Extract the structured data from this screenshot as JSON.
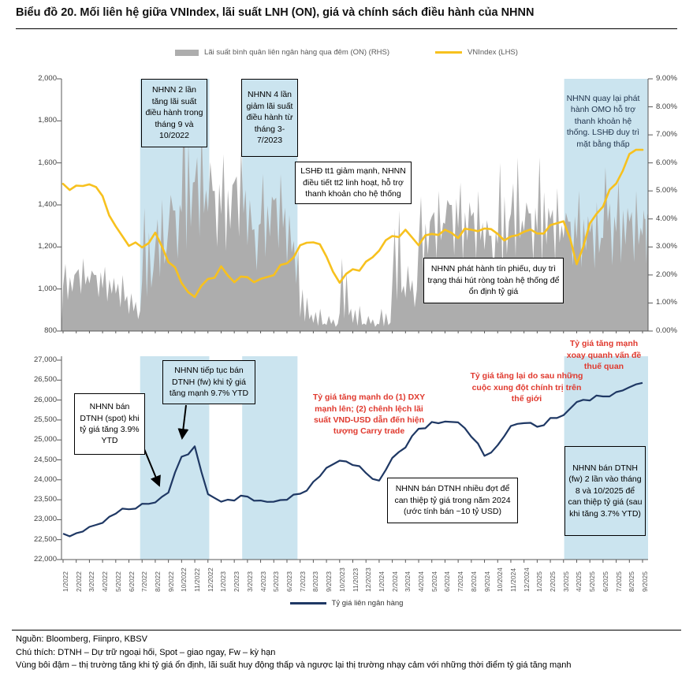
{
  "title": "Biểu đồ 20. Mối liên hệ giữa VNIndex, lãi suất LNH (ON), giá và chính sách điều hành của NHNN",
  "colors": {
    "vnindex_line": "#F7C11E",
    "rate_area": "#ADADAD",
    "fx_line": "#1F3864",
    "highlight_band": "#CBE4EF",
    "annotation_red": "#E0392E",
    "axis": "#7F7F7F"
  },
  "legend_top": {
    "rate_label": "Lãi suất bình quân liên ngân hàng qua đêm (ON) (RHS)",
    "vnindex_label": "VNIndex (LHS)"
  },
  "legend_bottom": {
    "fx_label": "Tỷ giá liên ngân hàng"
  },
  "annotations": {
    "rate_hike_2022": "NHNN 2 lần tăng lãi suất điều hành trong tháng 9 và 10/2022",
    "rate_cut_2023": "NHNN 4 lần giảm lãi suất điều hành từ tháng 3-7/2023",
    "lshd": "LSHĐ tt1 giảm mạnh, NHNN điều tiết tt2 linh hoạt, hỗ trợ thanh khoản cho hệ thống",
    "tin_phieu": "NHNN phát hành tín phiếu, duy trì trạng thái hút ròng toàn hệ thống để ổn định tỷ giá",
    "omo": "NHNN quay lại phát hành OMO hỗ trợ thanh khoản hệ thống. LSHĐ duy trì mặt bằng thấp",
    "spot": "NHNN bán DTNH (spot) khi tỷ giá tăng 3.9% YTD",
    "fw_2022": "NHNN tiếp tục bán DTNH (fw) khi tỷ giá tăng mạnh 9.7% YTD",
    "red_carry": "Tỷ giá tăng mạnh do (1) DXY mạnh lên; (2) chênh lệch lãi suất VND-USD dẫn đến hiện tượng Carry trade",
    "red_conflict": "Tỷ giá tăng lại do sau những cuộc  xung đột chính trị trên thế giới",
    "red_tariff": "Tỷ giá tăng mạnh xoay quanh vấn đề thuế quan",
    "sell_2024": "NHNN bán DTNH nhiều đợt để can thiệp tỷ giá trong năm 2024 (ước tính bán ~10 tỷ USD)",
    "fw_2025": "NHNN bán DTNH (fw) 2 lần vào tháng 8 và 10/2025 để can thiệp tỷ giá (sau khi tăng  3.7% YTD)"
  },
  "footer": {
    "source": "Nguồn: Bloomberg, Fiinpro, KBSV",
    "note1": "Chú thích: DTNH – Dự trữ ngoại hối, Spot –  giao ngay, Fw – kỳ hạn",
    "note2": "Vùng bôi đậm – thị trường tăng khi tỷ giá ổn định, lãi suất huy động thấp và ngược lại thị trường nhạy cảm với những thời điểm tỷ giá tăng mạnh"
  },
  "chart_data": [
    {
      "type": "line+area",
      "title": "VNIndex vs lãi suất liên ngân hàng qua đêm",
      "x": [
        "1/2022",
        "2/2022",
        "3/2022",
        "4/2022",
        "5/2022",
        "6/2022",
        "7/2022",
        "8/2022",
        "9/2022",
        "10/2022",
        "11/2022",
        "12/2022",
        "1/2023",
        "2/2023",
        "3/2023",
        "4/2023",
        "5/2023",
        "6/2023",
        "7/2023",
        "8/2023",
        "9/2023",
        "10/2023",
        "11/2023",
        "12/2023",
        "1/2024",
        "2/2024",
        "3/2024",
        "4/2024",
        "5/2024",
        "6/2024",
        "7/2024",
        "8/2024",
        "9/2024",
        "10/2024",
        "11/2024",
        "12/2024",
        "1/2025",
        "2/2025",
        "3/2025",
        "4/2025",
        "5/2025",
        "6/2025",
        "7/2025",
        "8/2025",
        "9/2025"
      ],
      "series": [
        {
          "name": "VNIndex (LHS)",
          "type": "line",
          "axis": "left",
          "color": "#F7C11E",
          "values": [
            1500,
            1492,
            1498,
            1442,
            1298,
            1205,
            1198,
            1268,
            1128,
            1028,
            962,
            1048,
            1108,
            1032,
            1056,
            1048,
            1066,
            1122,
            1208,
            1222,
            1154,
            1030,
            1094,
            1130,
            1182,
            1252,
            1282,
            1208,
            1262,
            1282,
            1242,
            1282,
            1288,
            1262,
            1250,
            1272,
            1264,
            1304,
            1322,
            1118,
            1312,
            1392,
            1502,
            1642,
            1662
          ]
        },
        {
          "name": "Lãi suất bình quân liên ngân hàng qua đêm (ON) (RHS)",
          "type": "area",
          "axis": "right",
          "color": "#ADADAD",
          "values_avg": [
            2.0,
            2.2,
            2.0,
            1.9,
            1.4,
            0.7,
            2.2,
            3.2,
            4.3,
            5.3,
            5.6,
            5.0,
            5.2,
            5.6,
            3.6,
            4.8,
            4.9,
            2.8,
            0.6,
            0.3,
            0.25,
            0.8,
            0.3,
            0.25,
            0.3,
            1.8,
            1.4,
            3.9,
            4.3,
            4.5,
            4.6,
            4.3,
            3.4,
            3.9,
            4.4,
            4.2,
            4.4,
            4.2,
            3.9,
            4.1,
            3.7,
            3.9,
            4.4,
            4.1,
            4.0
          ],
          "values_peak": [
            2.4,
            2.6,
            2.4,
            2.3,
            2.0,
            1.5,
            4.4,
            4.7,
            5.4,
            8.4,
            7.3,
            6.7,
            6.3,
            6.5,
            5.2,
            5.6,
            5.6,
            4.6,
            1.5,
            0.8,
            0.6,
            2.6,
            0.9,
            0.6,
            0.8,
            4.3,
            2.6,
            4.8,
            5.0,
            5.2,
            5.3,
            5.0,
            4.4,
            6.0,
            6.2,
            5.1,
            6.2,
            5.1,
            4.7,
            5.0,
            4.6,
            6.5,
            5.4,
            5.0,
            4.8
          ]
        }
      ],
      "left_axis": {
        "min": 800,
        "max": 2000,
        "ticks": [
          "2,000",
          "1,800",
          "1,600",
          "1,400",
          "1,200",
          "1,000",
          "800"
        ]
      },
      "right_axis": {
        "min": 0,
        "max": 9,
        "ticks": [
          "9.00%",
          "8.00%",
          "7.00%",
          "6.00%",
          "5.00%",
          "4.00%",
          "3.00%",
          "2.00%",
          "1.00%",
          "0.00%"
        ]
      },
      "highlight_bands_month_index": [
        [
          5.85,
          11.1
        ],
        [
          13.6,
          17.8
        ],
        [
          38.05,
          44.45
        ]
      ],
      "legend_position": "top"
    },
    {
      "type": "line",
      "title": "Tỷ giá liên ngân hàng",
      "series": [
        {
          "name": "Tỷ giá liên ngân hàng",
          "color": "#1F3864",
          "values": [
            22650,
            22660,
            22820,
            22920,
            23150,
            23260,
            23400,
            23430,
            23680,
            24580,
            24840,
            23640,
            23450,
            23480,
            23580,
            23480,
            23450,
            23500,
            23650,
            23950,
            24300,
            24480,
            24370,
            24170,
            23980,
            24550,
            24810,
            25280,
            25450,
            25460,
            25440,
            25080,
            24600,
            24870,
            25350,
            25420,
            25330,
            25550,
            25620,
            25950,
            25990,
            26090,
            26200,
            26320,
            26430
          ]
        }
      ],
      "left_axis": {
        "min": 22000,
        "max": 27000,
        "ticks": [
          "27,000",
          "26,500",
          "26,000",
          "25,500",
          "25,000",
          "24,500",
          "24,000",
          "23,500",
          "23,000",
          "22,500",
          "22,000"
        ]
      },
      "highlight_bands_month_index": [
        [
          5.85,
          11.1
        ],
        [
          13.6,
          17.8
        ],
        [
          38.05,
          44.45
        ]
      ],
      "legend_position": "bottom"
    }
  ]
}
